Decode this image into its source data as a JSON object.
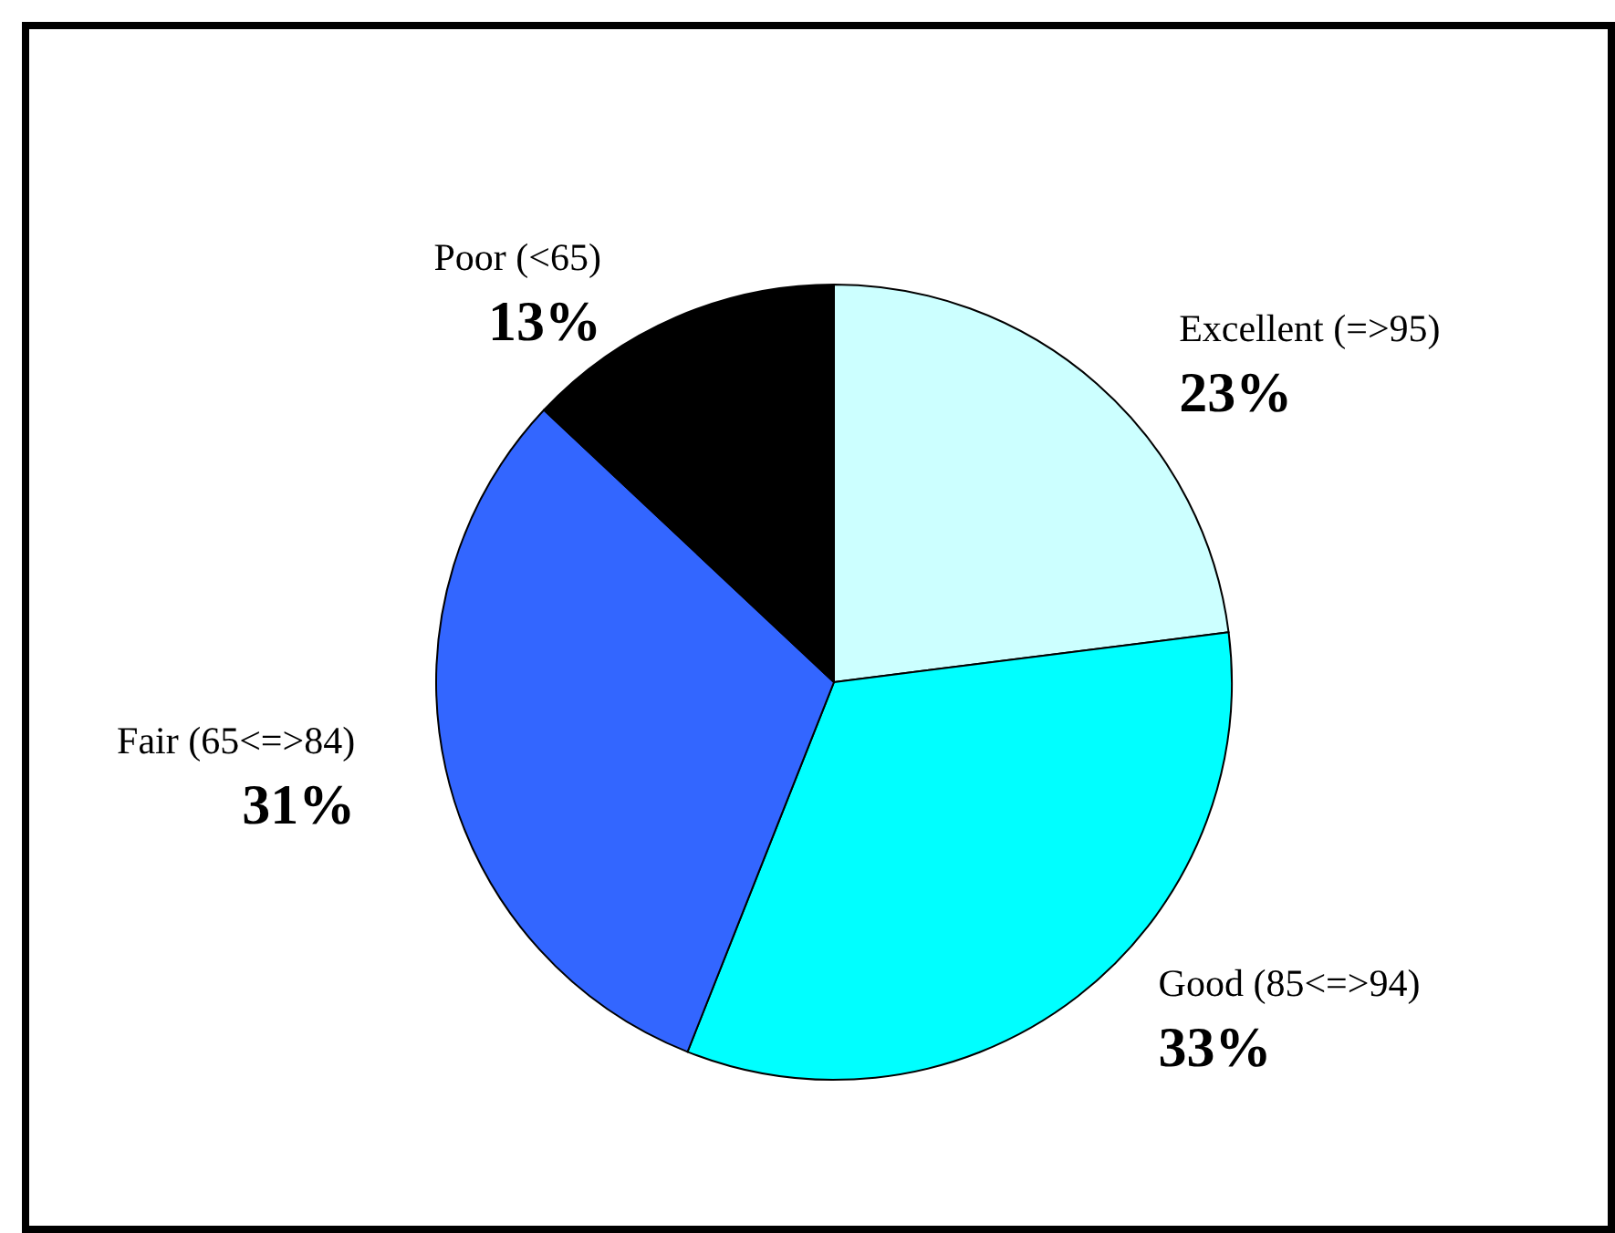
{
  "chart_data": {
    "type": "pie",
    "categories": [
      "Excellent (=>95)",
      "Good (85<=>94)",
      "Fair (65<=>84)",
      "Poor (<65)"
    ],
    "values": [
      23,
      33,
      31,
      13
    ],
    "colors": [
      "#ccffff",
      "#00ffff",
      "#3366ff",
      "#000000"
    ],
    "value_labels": [
      "23%",
      "33%",
      "31%",
      "13%"
    ],
    "legend": false
  }
}
